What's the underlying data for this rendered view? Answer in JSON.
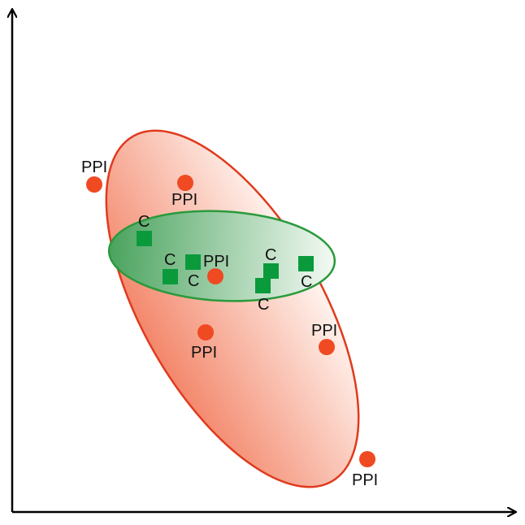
{
  "labels": {
    "ppi": "PPI",
    "control": "C"
  },
  "colors": {
    "ppi_point": "#f04a23",
    "ppi_ellipse_stroke": "#e03a1e",
    "ppi_ellipse_fill_dark": "#f3876b",
    "control_point": "#0a9a3c",
    "control_ellipse_stroke": "#2a9a3c",
    "control_ellipse_fill_dark": "#4aa35e",
    "axis": "#000000"
  }
}
